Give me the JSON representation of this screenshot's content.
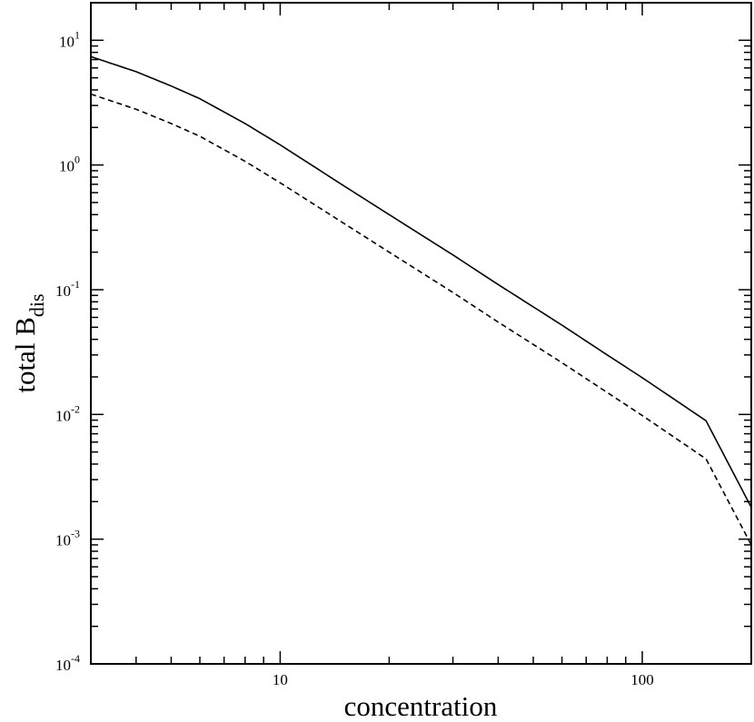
{
  "chart_data": {
    "type": "line",
    "xlabel": "concentration",
    "ylabel_main": "total  B",
    "ylabel_sub": "dis",
    "xscale": "log",
    "yscale": "log",
    "xlim": [
      3,
      200
    ],
    "ylim": [
      0.0001,
      20
    ],
    "x_ticks": [
      {
        "value": 10,
        "label": "10"
      },
      {
        "value": 100,
        "label": "100"
      }
    ],
    "y_ticks": [
      {
        "value": 10,
        "base": "10",
        "exp": "1"
      },
      {
        "value": 1,
        "base": "10",
        "exp": "0"
      },
      {
        "value": 0.1,
        "base": "10",
        "exp": "-1"
      },
      {
        "value": 0.01,
        "base": "10",
        "exp": "-2"
      },
      {
        "value": 0.001,
        "base": "10",
        "exp": "-3"
      },
      {
        "value": 0.0001,
        "base": "10",
        "exp": "-4"
      }
    ],
    "grid": false,
    "series": [
      {
        "style": "solid",
        "color": "#000000",
        "x": [
          3,
          4,
          5,
          6,
          8,
          10,
          15,
          20,
          30,
          40,
          60,
          80,
          100,
          150,
          200
        ],
        "y": [
          7.4,
          5.6,
          4.3,
          3.4,
          2.15,
          1.45,
          0.68,
          0.4,
          0.19,
          0.11,
          0.052,
          0.03,
          0.0197,
          0.0089,
          0.0018
        ]
      },
      {
        "style": "dashed",
        "color": "#000000",
        "x": [
          3,
          4,
          5,
          6,
          8,
          10,
          15,
          20,
          30,
          40,
          60,
          80,
          100,
          150,
          200
        ],
        "y": [
          3.7,
          2.8,
          2.15,
          1.7,
          1.07,
          0.72,
          0.34,
          0.2,
          0.095,
          0.055,
          0.026,
          0.015,
          0.0098,
          0.0044,
          0.0009
        ]
      }
    ]
  }
}
